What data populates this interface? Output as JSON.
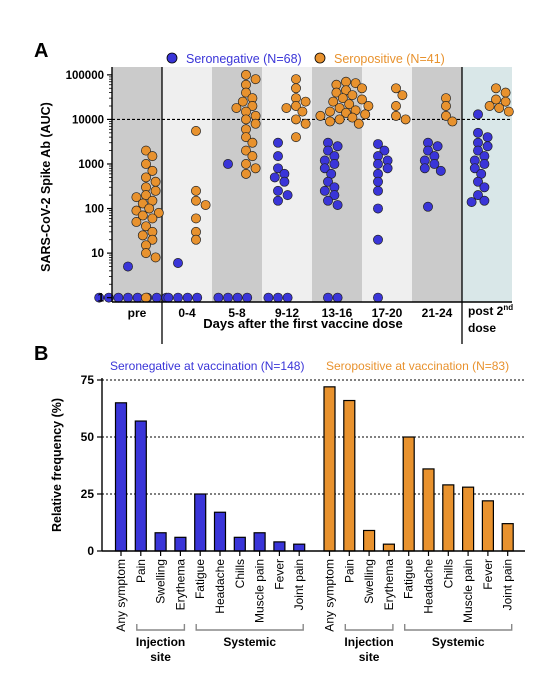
{
  "colors": {
    "seronegative": "#3a35d8",
    "seropositive": "#e8922e",
    "band_dark": "#cbcbcb",
    "band_light": "#efefef",
    "band_post": "#d9e7e8",
    "axis": "#000000"
  },
  "chart_data": [
    {
      "type": "scatter",
      "panel_label": "A",
      "ylabel": "SARS-CoV-2 Spike Ab (AUC)",
      "xlabel": "Days after the first vaccine dose",
      "yscale": "log",
      "ylim": [
        0.8,
        150000
      ],
      "yticks": [
        {
          "value": 1,
          "label": "1"
        },
        {
          "value": 10,
          "label": "10"
        },
        {
          "value": 100,
          "label": "100"
        },
        {
          "value": 1000,
          "label": "1000"
        },
        {
          "value": 10000,
          "label": "10000"
        },
        {
          "value": 100000,
          "label": "100000"
        }
      ],
      "threshold": 10000,
      "categories": [
        "pre",
        "0-4",
        "5-8",
        "9-12",
        "13-16",
        "17-20",
        "21-24",
        "post 2nd dose"
      ],
      "category_labels": {
        "pre": "pre",
        "0-4": "0-4",
        "5-8": "5-8",
        "9-12": "9-12",
        "13-16": "13-16",
        "17-20": "17-20",
        "21-24": "21-24",
        "post_line1": "post 2",
        "post_sup": "nd",
        "post_line2": "dose"
      },
      "legend": [
        {
          "name": "Seronegative (N=68)",
          "color_key": "seronegative"
        },
        {
          "name": "Seropositive (N=41)",
          "color_key": "seropositive"
        }
      ],
      "series": [
        {
          "name": "Seronegative (N=68)",
          "color_key": "seronegative",
          "groups": [
            [
              5,
              1,
              1,
              1,
              1,
              1,
              1,
              1,
              1
            ],
            [
              6,
              1,
              1,
              1,
              1
            ],
            [
              1000,
              1,
              1,
              1,
              1
            ],
            [
              3000,
              1500,
              800,
              600,
              500,
              400,
              250,
              200,
              150,
              1,
              1,
              1
            ],
            [
              3000,
              2500,
              2000,
              1500,
              1200,
              1000,
              800,
              600,
              400,
              300,
              250,
              200,
              150,
              120,
              1,
              1
            ],
            [
              2800,
              2000,
              1500,
              1200,
              1000,
              800,
              600,
              400,
              250,
              100,
              20,
              1
            ],
            [
              3000,
              2500,
              2000,
              1500,
              1200,
              1000,
              800,
              700,
              110
            ],
            [
              13000,
              5000,
              4000,
              3000,
              2500,
              2000,
              1500,
              1200,
              1000,
              800,
              600,
              400,
              300,
              200,
              150,
              140
            ]
          ]
        },
        {
          "name": "Seropositive (N=41)",
          "color_key": "seropositive",
          "groups": [
            [
              2000,
              1500,
              1000,
              700,
              500,
              400,
              300,
              250,
              200,
              180,
              150,
              130,
              100,
              90,
              80,
              70,
              60,
              50,
              40,
              30,
              25,
              20,
              15,
              10,
              8,
              1
            ],
            [
              5500,
              250,
              150,
              120,
              60,
              30,
              20
            ],
            [
              100000,
              80000,
              60000,
              40000,
              30000,
              25000,
              20000,
              18000,
              15000,
              12000,
              10000,
              8000,
              6000,
              4000,
              3000,
              2000,
              1500,
              1000,
              800,
              600
            ],
            [
              80000,
              50000,
              30000,
              25000,
              20000,
              18000,
              15000,
              10000,
              8000,
              4000
            ],
            [
              70000,
              65000,
              60000,
              50000,
              45000,
              40000,
              35000,
              30000,
              28000,
              25000,
              22000,
              20000,
              18000,
              16000,
              15000,
              14000,
              13000,
              12000,
              11000,
              10000,
              9000,
              8000
            ],
            [
              50000,
              35000,
              20000,
              12000,
              10000
            ],
            [
              30000,
              20000,
              12000,
              9000
            ],
            [
              50000,
              40000,
              28000,
              25000,
              20000,
              18000,
              15000
            ]
          ]
        }
      ]
    },
    {
      "type": "bar",
      "panel_label": "B",
      "ylabel": "Relative frequency (%)",
      "ylim": [
        0,
        75
      ],
      "yticks": [
        {
          "value": 0,
          "label": "0"
        },
        {
          "value": 25,
          "label": "25"
        },
        {
          "value": 50,
          "label": "50"
        },
        {
          "value": 75,
          "label": "75"
        }
      ],
      "gridlines": [
        25,
        50,
        75
      ],
      "categories": [
        "Any symptom",
        "Pain",
        "Swelling",
        "Erythema",
        "Fatigue",
        "Headache",
        "Chills",
        "Muscle pain",
        "Fever",
        "Joint pain"
      ],
      "groups": [
        {
          "label": "Injection site",
          "line1": "Injection",
          "line2": "site",
          "from": 1,
          "to": 3
        },
        {
          "label": "Systemic",
          "line1": "Systemic",
          "line2": "",
          "from": 4,
          "to": 9
        }
      ],
      "series": [
        {
          "name": "Seronegative at vaccination (N=148)",
          "color_key": "seronegative",
          "values": [
            65,
            57,
            8,
            6,
            25,
            17,
            6,
            8,
            4,
            3
          ]
        },
        {
          "name": "Seropositive at vaccination (N=83)",
          "color_key": "seropositive",
          "values": [
            72,
            66,
            9,
            3,
            50,
            36,
            29,
            28,
            22,
            12
          ]
        }
      ]
    }
  ]
}
